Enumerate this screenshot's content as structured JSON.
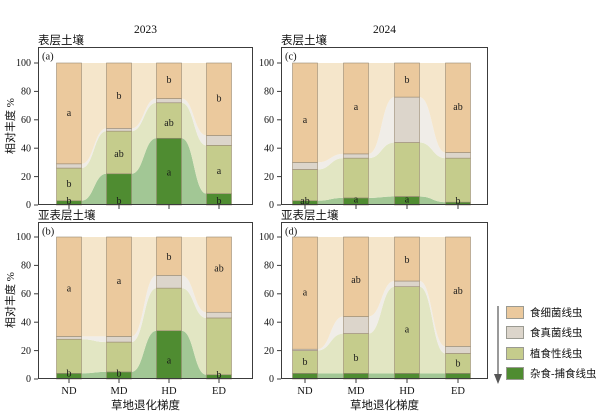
{
  "figure": {
    "ylabel": "相对丰度 %",
    "xlabel": "草地退化梯度",
    "year_left": "2023",
    "year_right": "2024",
    "surface_label": "表层土壤",
    "subsurface_label": "亚表层土壤"
  },
  "palette": {
    "frame": "#3c3c3c",
    "tick_text": "#111111",
    "segment_border": "#9a8b74"
  },
  "legend": {
    "arrow_direction": "down",
    "items": [
      {
        "label": "食细菌线虫",
        "color": "#ebc99d"
      },
      {
        "label": "食真菌线虫",
        "color": "#dcd5cb"
      },
      {
        "label": "植食性线虫",
        "color": "#c5cc8c"
      },
      {
        "label": "杂食-捕食线虫",
        "color": "#4f8c31"
      }
    ]
  },
  "chart_data": [
    {
      "type": "bar",
      "panel": "(a)",
      "soil": "表层土壤",
      "year": "2023",
      "ylabel": "相对丰度 %",
      "xlabel": "",
      "show_x_labels": false,
      "categories": [
        "ND",
        "MD",
        "HD",
        "ED"
      ],
      "ylim": [
        0,
        100
      ],
      "yticks": [
        0,
        20,
        40,
        60,
        80,
        100
      ],
      "series": [
        {
          "name": "杂食-捕食线虫",
          "color": "#4f8c31",
          "flow_color": "#a2c795",
          "values": [
            3,
            22,
            47,
            8
          ]
        },
        {
          "name": "植食性线虫",
          "color": "#c5cc8c",
          "flow_color": "#e2e6c3",
          "values": [
            23,
            30,
            25,
            34
          ]
        },
        {
          "name": "食真菌线虫",
          "color": "#dcd5cb",
          "flow_color": "#f0ede8",
          "values": [
            3,
            2,
            3,
            7
          ]
        },
        {
          "name": "食细菌线虫",
          "color": "#ebc99d",
          "flow_color": "#f5e6cb",
          "values": [
            71,
            46,
            25,
            51
          ]
        }
      ],
      "letters": [
        [
          {
            "text": "a",
            "at": 65
          },
          {
            "text": "b",
            "at": 15
          },
          {
            "text": "b",
            "at": 3
          }
        ],
        [
          {
            "text": "b",
            "at": 77
          },
          {
            "text": "ab",
            "at": 36
          },
          {
            "text": "b",
            "at": 3
          }
        ],
        [
          {
            "text": "b",
            "at": 88
          },
          {
            "text": "ab",
            "at": 58
          },
          {
            "text": "a",
            "at": 23
          }
        ],
        [
          {
            "text": "b",
            "at": 75
          },
          {
            "text": "a",
            "at": 24
          },
          {
            "text": "b",
            "at": 3
          }
        ]
      ]
    },
    {
      "type": "bar",
      "panel": "(b)",
      "soil": "亚表层土壤",
      "year": "2023",
      "ylabel": "相对丰度 %",
      "xlabel": "草地退化梯度",
      "show_x_labels": true,
      "categories": [
        "ND",
        "MD",
        "HD",
        "ED"
      ],
      "ylim": [
        0,
        100
      ],
      "yticks": [
        0,
        20,
        40,
        60,
        80,
        100
      ],
      "series": [
        {
          "name": "杂食-捕食线虫",
          "color": "#4f8c31",
          "flow_color": "#a2c795",
          "values": [
            4,
            5,
            34,
            3
          ]
        },
        {
          "name": "植食性线虫",
          "color": "#c5cc8c",
          "flow_color": "#e2e6c3",
          "values": [
            24,
            21,
            30,
            40
          ]
        },
        {
          "name": "食真菌线虫",
          "color": "#dcd5cb",
          "flow_color": "#f0ede8",
          "values": [
            2,
            4,
            9,
            4
          ]
        },
        {
          "name": "食细菌线虫",
          "color": "#ebc99d",
          "flow_color": "#f5e6cb",
          "values": [
            70,
            70,
            27,
            53
          ]
        }
      ],
      "letters": [
        [
          {
            "text": "a",
            "at": 64
          },
          {
            "text": "b",
            "at": 4
          }
        ],
        [
          {
            "text": "a",
            "at": 69
          },
          {
            "text": "b",
            "at": 4
          }
        ],
        [
          {
            "text": "b",
            "at": 86
          },
          {
            "text": "a",
            "at": 13
          }
        ],
        [
          {
            "text": "ab",
            "at": 78
          },
          {
            "text": "b",
            "at": 3
          }
        ]
      ]
    },
    {
      "type": "bar",
      "panel": "(c)",
      "soil": "表层土壤",
      "year": "2024",
      "ylabel": "",
      "xlabel": "",
      "show_x_labels": false,
      "categories": [
        "ND",
        "MD",
        "HD",
        "ED"
      ],
      "ylim": [
        0,
        100
      ],
      "yticks": [
        0,
        20,
        40,
        60,
        80,
        100
      ],
      "series": [
        {
          "name": "杂食-捕食线虫",
          "color": "#4f8c31",
          "flow_color": "#a2c795",
          "values": [
            3,
            5,
            6,
            2
          ]
        },
        {
          "name": "植食性线虫",
          "color": "#c5cc8c",
          "flow_color": "#e2e6c3",
          "values": [
            22,
            28,
            38,
            31
          ]
        },
        {
          "name": "食真菌线虫",
          "color": "#dcd5cb",
          "flow_color": "#f0ede8",
          "values": [
            5,
            3,
            32,
            4
          ]
        },
        {
          "name": "食细菌线虫",
          "color": "#ebc99d",
          "flow_color": "#f5e6cb",
          "values": [
            70,
            64,
            24,
            63
          ]
        }
      ],
      "letters": [
        [
          {
            "text": "a",
            "at": 60
          },
          {
            "text": "ab",
            "at": 3
          }
        ],
        [
          {
            "text": "a",
            "at": 69
          },
          {
            "text": "a",
            "at": 4
          }
        ],
        [
          {
            "text": "b",
            "at": 88
          },
          {
            "text": "a",
            "at": 4
          }
        ],
        [
          {
            "text": "ab",
            "at": 69
          },
          {
            "text": "b",
            "at": 3
          }
        ]
      ]
    },
    {
      "type": "bar",
      "panel": "(d)",
      "soil": "亚表层土壤",
      "year": "2024",
      "ylabel": "",
      "xlabel": "草地退化梯度",
      "show_x_labels": true,
      "categories": [
        "ND",
        "MD",
        "HD",
        "ED"
      ],
      "ylim": [
        0,
        100
      ],
      "yticks": [
        0,
        20,
        40,
        60,
        80,
        100
      ],
      "series": [
        {
          "name": "杂食-捕食线虫",
          "color": "#4f8c31",
          "flow_color": "#a2c795",
          "values": [
            4,
            4,
            4,
            4
          ]
        },
        {
          "name": "植食性线虫",
          "color": "#c5cc8c",
          "flow_color": "#e2e6c3",
          "values": [
            16,
            28,
            61,
            14
          ]
        },
        {
          "name": "食真菌线虫",
          "color": "#dcd5cb",
          "flow_color": "#f0ede8",
          "values": [
            1,
            12,
            4,
            5
          ]
        },
        {
          "name": "食细菌线虫",
          "color": "#ebc99d",
          "flow_color": "#f5e6cb",
          "values": [
            79,
            56,
            31,
            77
          ]
        }
      ],
      "letters": [
        [
          {
            "text": "a",
            "at": 61
          },
          {
            "text": "b",
            "at": 12
          }
        ],
        [
          {
            "text": "ab",
            "at": 70
          },
          {
            "text": "b",
            "at": 15
          }
        ],
        [
          {
            "text": "b",
            "at": 84
          },
          {
            "text": "a",
            "at": 35
          }
        ],
        [
          {
            "text": "ab",
            "at": 62
          },
          {
            "text": "b",
            "at": 11
          }
        ]
      ]
    }
  ]
}
